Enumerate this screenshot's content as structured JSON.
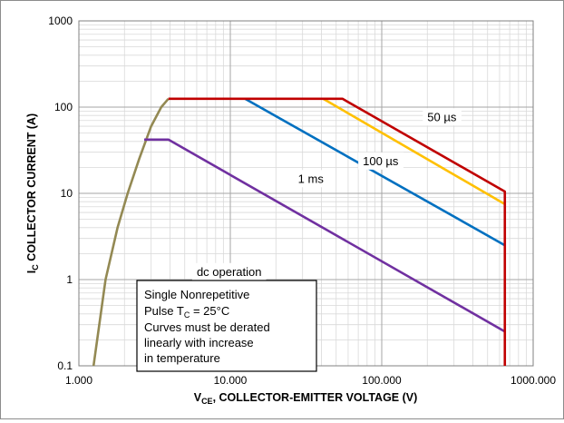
{
  "chart_data": {
    "type": "line",
    "title": "",
    "xscale": "log",
    "yscale": "log",
    "xlim": [
      1,
      1000
    ],
    "ylim": [
      0.1,
      1000
    ],
    "grid": true,
    "xlabel": {
      "prefix": "V",
      "sub": "CE",
      "suffix": ", COLLECTOR-EMITTER VOLTAGE (V)"
    },
    "ylabel": {
      "prefix": "I",
      "sub": "C",
      "suffix": " COLLECTOR CURRENT (A)"
    },
    "x_ticks": [
      {
        "value": 1,
        "label": "1.000"
      },
      {
        "value": 10,
        "label": "10.000"
      },
      {
        "value": 100,
        "label": "100.000"
      },
      {
        "value": 1000,
        "label": "1000.000"
      }
    ],
    "y_ticks": [
      {
        "value": 0.1,
        "label": "0.1"
      },
      {
        "value": 1,
        "label": "1"
      },
      {
        "value": 10,
        "label": "10"
      },
      {
        "value": 100,
        "label": "100"
      },
      {
        "value": 1000,
        "label": "1000"
      }
    ],
    "series": [
      {
        "color": "#938953",
        "points": [
          [
            1.25,
            0.1
          ],
          [
            1.5,
            1
          ],
          [
            1.8,
            4
          ],
          [
            2.1,
            10
          ],
          [
            2.5,
            25
          ],
          [
            3.0,
            60
          ],
          [
            3.5,
            100
          ],
          [
            3.9,
            125
          ]
        ]
      },
      {
        "color": "#7030a0",
        "points": [
          [
            2.7,
            42
          ],
          [
            3.9,
            42
          ],
          [
            650,
            0.25
          ]
        ]
      },
      {
        "color": "#0070c0",
        "points": [
          [
            12.5,
            125
          ],
          [
            650,
            2.5
          ]
        ]
      },
      {
        "color": "#ffc000",
        "points": [
          [
            41,
            125
          ],
          [
            650,
            7.5
          ]
        ]
      },
      {
        "color": "#c00000",
        "points": [
          [
            3.9,
            125
          ],
          [
            55,
            125
          ],
          [
            650,
            10.5
          ],
          [
            650,
            0.1
          ]
        ]
      }
    ],
    "annotations": [
      {
        "id": "anno-50us",
        "text": "50 µs",
        "x": 200,
        "y": 78
      },
      {
        "id": "anno-100us",
        "text": "100 µs",
        "x": 75,
        "y": 24
      },
      {
        "id": "anno-1ms",
        "text": "1 ms",
        "x": 28,
        "y": 15
      },
      {
        "id": "anno-dc",
        "text": "dc operation",
        "x": 6,
        "y": 1.25
      }
    ],
    "note": {
      "line1": "Single Nonrepetitive",
      "line2_prefix": "Pulse T",
      "line2_sub": "C",
      "line2_suffix": " = 25°C",
      "line3": "Curves must be derated",
      "line4": "linearly with increase",
      "line5": "in temperature"
    }
  }
}
